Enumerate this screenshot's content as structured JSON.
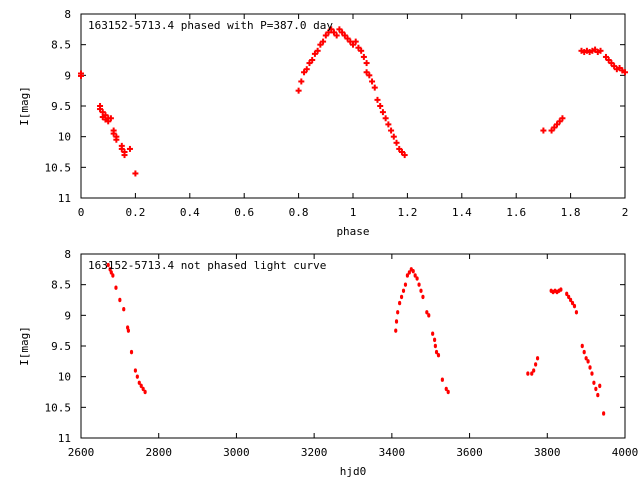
{
  "chart_data": [
    {
      "type": "scatter",
      "title": "163152-5713.4 phased with P=387.0 day",
      "xlabel": "phase",
      "ylabel": "I[mag]",
      "xlim": [
        0,
        2
      ],
      "ylim": [
        8,
        11
      ],
      "y_inverted": true,
      "xticks": [
        "0",
        "0.2",
        "0.4",
        "0.6",
        "0.8",
        "1",
        "1.2",
        "1.4",
        "1.6",
        "1.8",
        "2"
      ],
      "yticks": [
        "8",
        "8.5",
        "9",
        "9.5",
        "10",
        "10.5",
        "11"
      ],
      "grid": false,
      "marker_color": "#ff0000",
      "marker": "plus",
      "points": [
        [
          0.0,
          8.97
        ],
        [
          0.0,
          9.01
        ],
        [
          0.07,
          9.5
        ],
        [
          0.07,
          9.55
        ],
        [
          0.08,
          9.6
        ],
        [
          0.08,
          9.68
        ],
        [
          0.09,
          9.65
        ],
        [
          0.09,
          9.72
        ],
        [
          0.1,
          9.7
        ],
        [
          0.1,
          9.75
        ],
        [
          0.11,
          9.7
        ],
        [
          0.12,
          9.9
        ],
        [
          0.12,
          9.95
        ],
        [
          0.13,
          10.0
        ],
        [
          0.13,
          10.05
        ],
        [
          0.15,
          10.15
        ],
        [
          0.15,
          10.2
        ],
        [
          0.16,
          10.3
        ],
        [
          0.16,
          10.25
        ],
        [
          0.18,
          10.2
        ],
        [
          0.2,
          10.6
        ],
        [
          0.8,
          9.25
        ],
        [
          0.81,
          9.1
        ],
        [
          0.82,
          8.95
        ],
        [
          0.83,
          8.9
        ],
        [
          0.84,
          8.8
        ],
        [
          0.85,
          8.75
        ],
        [
          0.86,
          8.65
        ],
        [
          0.87,
          8.6
        ],
        [
          0.88,
          8.5
        ],
        [
          0.89,
          8.45
        ],
        [
          0.9,
          8.35
        ],
        [
          0.91,
          8.3
        ],
        [
          0.92,
          8.25
        ],
        [
          0.93,
          8.3
        ],
        [
          0.94,
          8.35
        ],
        [
          0.95,
          8.25
        ],
        [
          0.96,
          8.3
        ],
        [
          0.97,
          8.35
        ],
        [
          0.98,
          8.4
        ],
        [
          0.99,
          8.45
        ],
        [
          1.0,
          8.5
        ],
        [
          1.01,
          8.45
        ],
        [
          1.02,
          8.55
        ],
        [
          1.03,
          8.6
        ],
        [
          1.04,
          8.7
        ],
        [
          1.05,
          8.8
        ],
        [
          1.05,
          8.95
        ],
        [
          1.06,
          9.0
        ],
        [
          1.07,
          9.1
        ],
        [
          1.08,
          9.2
        ],
        [
          1.09,
          9.4
        ],
        [
          1.1,
          9.5
        ],
        [
          1.11,
          9.6
        ],
        [
          1.12,
          9.7
        ],
        [
          1.13,
          9.8
        ],
        [
          1.14,
          9.9
        ],
        [
          1.15,
          10.0
        ],
        [
          1.16,
          10.1
        ],
        [
          1.17,
          10.2
        ],
        [
          1.18,
          10.25
        ],
        [
          1.19,
          10.3
        ],
        [
          1.7,
          9.9
        ],
        [
          1.73,
          9.9
        ],
        [
          1.74,
          9.85
        ],
        [
          1.75,
          9.8
        ],
        [
          1.76,
          9.75
        ],
        [
          1.77,
          9.7
        ],
        [
          1.84,
          8.6
        ],
        [
          1.85,
          8.62
        ],
        [
          1.86,
          8.6
        ],
        [
          1.87,
          8.62
        ],
        [
          1.88,
          8.6
        ],
        [
          1.89,
          8.58
        ],
        [
          1.9,
          8.62
        ],
        [
          1.91,
          8.6
        ],
        [
          1.93,
          8.7
        ],
        [
          1.94,
          8.75
        ],
        [
          1.95,
          8.8
        ],
        [
          1.96,
          8.85
        ],
        [
          1.97,
          8.9
        ],
        [
          1.98,
          8.88
        ],
        [
          1.99,
          8.92
        ],
        [
          2.0,
          8.95
        ]
      ]
    },
    {
      "type": "scatter",
      "title": "163152-5713.4 not phased light curve",
      "xlabel": "hjd0",
      "ylabel": "I[mag]",
      "xlim": [
        2600,
        4000
      ],
      "ylim": [
        8,
        11
      ],
      "y_inverted": true,
      "xticks": [
        "2600",
        "2800",
        "3000",
        "3200",
        "3400",
        "3600",
        "3800",
        "4000"
      ],
      "yticks": [
        "8",
        "8.5",
        "9",
        "9.5",
        "10",
        "10.5",
        "11"
      ],
      "grid": false,
      "marker_color": "#ff0000",
      "marker": "dot",
      "points": [
        [
          2670,
          8.18
        ],
        [
          2675,
          8.25
        ],
        [
          2678,
          8.3
        ],
        [
          2682,
          8.35
        ],
        [
          2690,
          8.55
        ],
        [
          2700,
          8.75
        ],
        [
          2710,
          8.9
        ],
        [
          2720,
          9.2
        ],
        [
          2722,
          9.25
        ],
        [
          2730,
          9.6
        ],
        [
          2740,
          9.9
        ],
        [
          2745,
          10.0
        ],
        [
          2750,
          10.1
        ],
        [
          2755,
          10.15
        ],
        [
          2760,
          10.2
        ],
        [
          2765,
          10.25
        ],
        [
          3410,
          9.25
        ],
        [
          3412,
          9.1
        ],
        [
          3415,
          8.95
        ],
        [
          3420,
          8.8
        ],
        [
          3425,
          8.7
        ],
        [
          3430,
          8.6
        ],
        [
          3435,
          8.5
        ],
        [
          3440,
          8.35
        ],
        [
          3445,
          8.3
        ],
        [
          3450,
          8.25
        ],
        [
          3455,
          8.28
        ],
        [
          3460,
          8.35
        ],
        [
          3465,
          8.4
        ],
        [
          3470,
          8.5
        ],
        [
          3475,
          8.6
        ],
        [
          3480,
          8.7
        ],
        [
          3490,
          8.95
        ],
        [
          3495,
          9.0
        ],
        [
          3505,
          9.3
        ],
        [
          3510,
          9.4
        ],
        [
          3512,
          9.5
        ],
        [
          3515,
          9.6
        ],
        [
          3520,
          9.65
        ],
        [
          3530,
          10.05
        ],
        [
          3540,
          10.2
        ],
        [
          3545,
          10.25
        ],
        [
          3750,
          9.95
        ],
        [
          3760,
          9.95
        ],
        [
          3765,
          9.9
        ],
        [
          3770,
          9.8
        ],
        [
          3775,
          9.7
        ],
        [
          3810,
          8.6
        ],
        [
          3815,
          8.62
        ],
        [
          3820,
          8.6
        ],
        [
          3825,
          8.62
        ],
        [
          3830,
          8.6
        ],
        [
          3835,
          8.58
        ],
        [
          3850,
          8.65
        ],
        [
          3855,
          8.7
        ],
        [
          3860,
          8.75
        ],
        [
          3865,
          8.8
        ],
        [
          3870,
          8.85
        ],
        [
          3875,
          8.95
        ],
        [
          3890,
          9.5
        ],
        [
          3895,
          9.6
        ],
        [
          3900,
          9.7
        ],
        [
          3905,
          9.75
        ],
        [
          3910,
          9.85
        ],
        [
          3915,
          9.95
        ],
        [
          3920,
          10.1
        ],
        [
          3925,
          10.2
        ],
        [
          3930,
          10.3
        ],
        [
          3935,
          10.15
        ],
        [
          3945,
          10.6
        ]
      ]
    }
  ]
}
